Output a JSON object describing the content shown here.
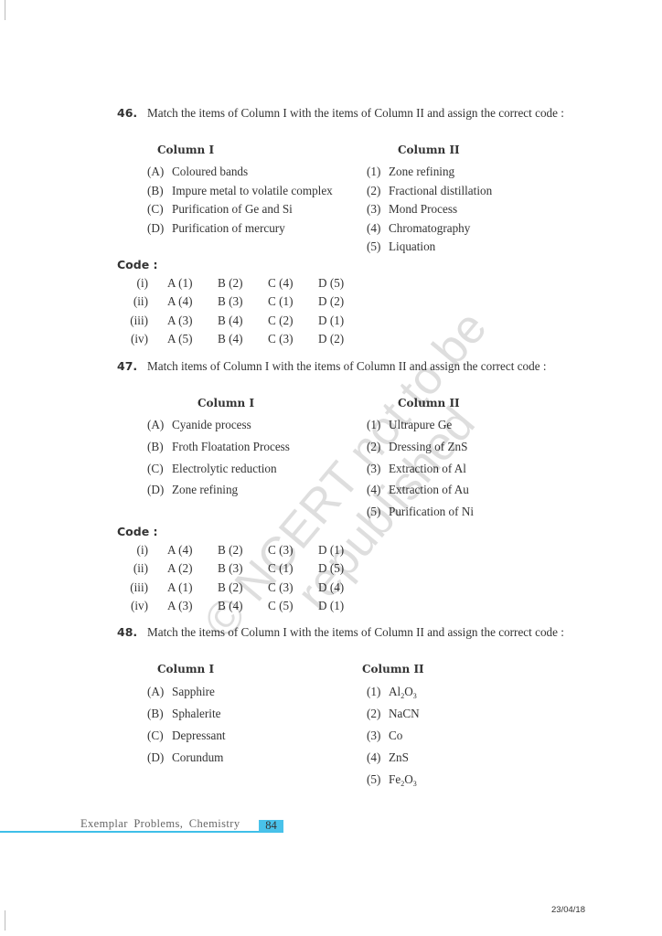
{
  "questions": [
    {
      "number": "46.",
      "text": "Match the items of Column I with the items of Column II and assign the correct code :",
      "column1_heading": "Column I",
      "column2_heading": "Column II",
      "column1": [
        {
          "label": "(A)",
          "text": "Coloured bands"
        },
        {
          "label": "(B)",
          "text": "Impure metal to volatile complex"
        },
        {
          "label": "(C)",
          "text": "Purification of Ge and Si"
        },
        {
          "label": "(D)",
          "text": "Purification of mercury"
        }
      ],
      "column2": [
        {
          "label": "(1)",
          "text": "Zone refining"
        },
        {
          "label": "(2)",
          "text": "Fractional distillation"
        },
        {
          "label": "(3)",
          "text": "Mond Process"
        },
        {
          "label": "(4)",
          "text": "Chromatography"
        },
        {
          "label": "(5)",
          "text": "Liquation"
        }
      ],
      "code_heading": "Code :",
      "codes": [
        {
          "option": "(i)",
          "a": "A (1)",
          "b": "B (2)",
          "c": "C (4)",
          "d": "D (5)"
        },
        {
          "option": "(ii)",
          "a": "A (4)",
          "b": "B (3)",
          "c": "C (1)",
          "d": "D (2)"
        },
        {
          "option": "(iii)",
          "a": "A (3)",
          "b": "B (4)",
          "c": "C (2)",
          "d": "D (1)"
        },
        {
          "option": "(iv)",
          "a": "A (5)",
          "b": "B (4)",
          "c": "C (3)",
          "d": "D (2)"
        }
      ]
    },
    {
      "number": "47.",
      "text": "Match items of Column I with the items of Column II and assign the correct code :",
      "column1_heading": "Column I",
      "column2_heading": "Column II",
      "column1": [
        {
          "label": "(A)",
          "text": "Cyanide process"
        },
        {
          "label": "(B)",
          "text": "Froth Floatation Process"
        },
        {
          "label": "(C)",
          "text": "Electrolytic reduction"
        },
        {
          "label": "(D)",
          "text": "Zone refining"
        }
      ],
      "column2": [
        {
          "label": "(1)",
          "text": "Ultrapure Ge"
        },
        {
          "label": "(2)",
          "text": "Dressing of ZnS"
        },
        {
          "label": "(3)",
          "text": "Extraction of Al"
        },
        {
          "label": "(4)",
          "text": "Extraction of Au"
        },
        {
          "label": "(5)",
          "text": "Purification of Ni"
        }
      ],
      "code_heading": "Code :",
      "codes": [
        {
          "option": "(i)",
          "a": "A (4)",
          "b": "B (2)",
          "c": "C (3)",
          "d": "D (1)"
        },
        {
          "option": "(ii)",
          "a": "A (2)",
          "b": "B (3)",
          "c": "C (1)",
          "d": "D (5)"
        },
        {
          "option": "(iii)",
          "a": "A (1)",
          "b": "B (2)",
          "c": "C (3)",
          "d": "D (4)"
        },
        {
          "option": "(iv)",
          "a": "A (3)",
          "b": "B (4)",
          "c": "C (5)",
          "d": "D (1)"
        }
      ]
    },
    {
      "number": "48.",
      "text": "Match the items of Column I with the items of Column II and assign the correct code :",
      "column1_heading": "Column I",
      "column2_heading": "Column II",
      "column1": [
        {
          "label": "(A)",
          "text": "Sapphire"
        },
        {
          "label": "(B)",
          "text": "Sphalerite"
        },
        {
          "label": "(C)",
          "text": "Depressant"
        },
        {
          "label": "(D)",
          "text": "Corundum"
        }
      ],
      "column2": [
        {
          "label": "(1)",
          "text": "Al",
          "sub1": "2",
          "mid": "O",
          "sub2": "3"
        },
        {
          "label": "(2)",
          "text": "NaCN"
        },
        {
          "label": "(3)",
          "text": "Co"
        },
        {
          "label": "(4)",
          "text": "ZnS"
        },
        {
          "label": "(5)",
          "text": "Fe",
          "sub1": "2",
          "mid": "O",
          "sub2": "3"
        }
      ]
    }
  ],
  "footer": {
    "book_title": "Exemplar Problems, Chemistry",
    "page_number": "84",
    "date": "23/04/18",
    "accent_color": "#49c2ea"
  },
  "watermark": "© NCERT not to be republished"
}
